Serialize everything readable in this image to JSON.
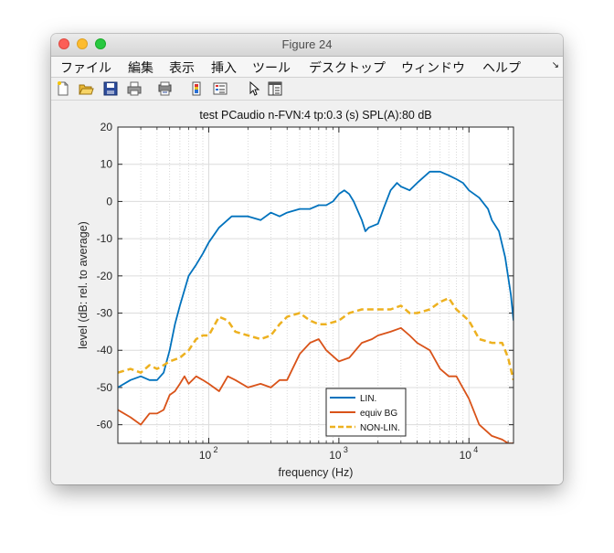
{
  "window": {
    "title": "Figure 24"
  },
  "menu": [
    "ファイル",
    "編集",
    "表示",
    "挿入",
    "ツール",
    "デスクトップ",
    "ウィンドウ",
    "ヘルプ"
  ],
  "toolbar_icons": [
    "new-figure-icon",
    "open-file-icon",
    "save-icon",
    "print-icon",
    "print-preview-icon",
    "colorbar-icon",
    "legend-icon",
    "pointer-icon",
    "property-editor-icon"
  ],
  "chart_data": {
    "type": "line",
    "title": "test PCaudio  n-FVN:4  tp:0.3 (s)  SPL(A):80 dB",
    "xlabel": "frequency (Hz)",
    "ylabel": "level (dB: rel. to average)",
    "xscale": "log",
    "xlim": [
      20,
      22000
    ],
    "ylim": [
      -65,
      20
    ],
    "yticks": [
      20,
      10,
      0,
      -10,
      -20,
      -30,
      -40,
      -50,
      -60
    ],
    "xticks": [
      {
        "value": 100,
        "label": "10",
        "exp": "2"
      },
      {
        "value": 1000,
        "label": "10",
        "exp": "3"
      },
      {
        "value": 10000,
        "label": "10",
        "exp": "4"
      }
    ],
    "grid": true,
    "legend_position": "bottom-center",
    "series": [
      {
        "name": "LIN.",
        "color": "#0072bd",
        "style": "solid",
        "x": [
          20,
          25,
          30,
          35,
          40,
          45,
          50,
          55,
          60,
          70,
          80,
          90,
          100,
          120,
          150,
          200,
          250,
          300,
          350,
          400,
          500,
          600,
          700,
          800,
          900,
          1000,
          1100,
          1200,
          1300,
          1500,
          1600,
          1700,
          2000,
          2200,
          2500,
          2800,
          3000,
          3500,
          4000,
          5000,
          6000,
          7000,
          8000,
          9000,
          10000,
          12000,
          14000,
          15000,
          17000,
          19000,
          21000,
          22000
        ],
        "y": [
          -50,
          -48,
          -47,
          -48,
          -48,
          -46,
          -40,
          -33,
          -28,
          -20,
          -17,
          -14,
          -11,
          -7,
          -4,
          -4,
          -5,
          -3,
          -4,
          -3,
          -2,
          -2,
          -1,
          -1,
          0,
          2,
          3,
          2,
          0,
          -5,
          -8,
          -7,
          -6,
          -2,
          3,
          5,
          4,
          3,
          5,
          8,
          8,
          7,
          6,
          5,
          3,
          1,
          -2,
          -5,
          -8,
          -15,
          -25,
          -32
        ]
      },
      {
        "name": "equiv BG",
        "color": "#d95319",
        "style": "solid",
        "x": [
          20,
          25,
          30,
          35,
          40,
          45,
          50,
          55,
          60,
          65,
          70,
          80,
          90,
          100,
          120,
          140,
          160,
          200,
          250,
          300,
          350,
          400,
          500,
          600,
          700,
          800,
          1000,
          1200,
          1500,
          1800,
          2000,
          2500,
          3000,
          3500,
          4000,
          5000,
          6000,
          7000,
          8000,
          10000,
          12000,
          15000,
          18000,
          20000,
          22000
        ],
        "y": [
          -56,
          -58,
          -60,
          -57,
          -57,
          -56,
          -52,
          -51,
          -49,
          -47,
          -49,
          -47,
          -48,
          -49,
          -51,
          -47,
          -48,
          -50,
          -49,
          -50,
          -48,
          -48,
          -41,
          -38,
          -37,
          -40,
          -43,
          -42,
          -38,
          -37,
          -36,
          -35,
          -34,
          -36,
          -38,
          -40,
          -45,
          -47,
          -47,
          -53,
          -60,
          -63,
          -64,
          -65,
          -65
        ]
      },
      {
        "name": "NON-LIN.",
        "color": "#edb120",
        "style": "dashed",
        "x": [
          20,
          25,
          30,
          35,
          40,
          45,
          50,
          60,
          70,
          80,
          90,
          100,
          120,
          140,
          160,
          200,
          250,
          300,
          350,
          400,
          500,
          600,
          700,
          800,
          1000,
          1200,
          1500,
          2000,
          2500,
          3000,
          3500,
          4000,
          5000,
          6000,
          7000,
          8000,
          10000,
          12000,
          15000,
          18000,
          20000,
          22000
        ],
        "y": [
          -46,
          -45,
          -46,
          -44,
          -45,
          -44,
          -43,
          -42,
          -40,
          -37,
          -36,
          -36,
          -31,
          -32,
          -35,
          -36,
          -37,
          -36,
          -33,
          -31,
          -30,
          -32,
          -33,
          -33,
          -32,
          -30,
          -29,
          -29,
          -29,
          -28,
          -30,
          -30,
          -29,
          -27,
          -26,
          -29,
          -32,
          -37,
          -38,
          -38,
          -42,
          -48
        ]
      }
    ]
  }
}
